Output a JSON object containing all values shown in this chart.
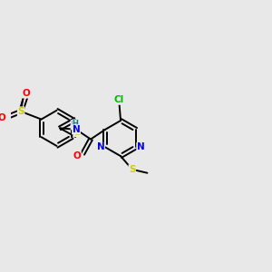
{
  "bg_color": "#e8e8e8",
  "bond_color": "#000000",
  "atom_colors": {
    "S": "#cccc00",
    "N": "#0000ff",
    "O": "#ff0000",
    "Cl": "#00bb00",
    "H": "#008080",
    "C": "#000000"
  },
  "font_size_atom": 7.5,
  "line_width": 1.4,
  "dbo": 0.008
}
